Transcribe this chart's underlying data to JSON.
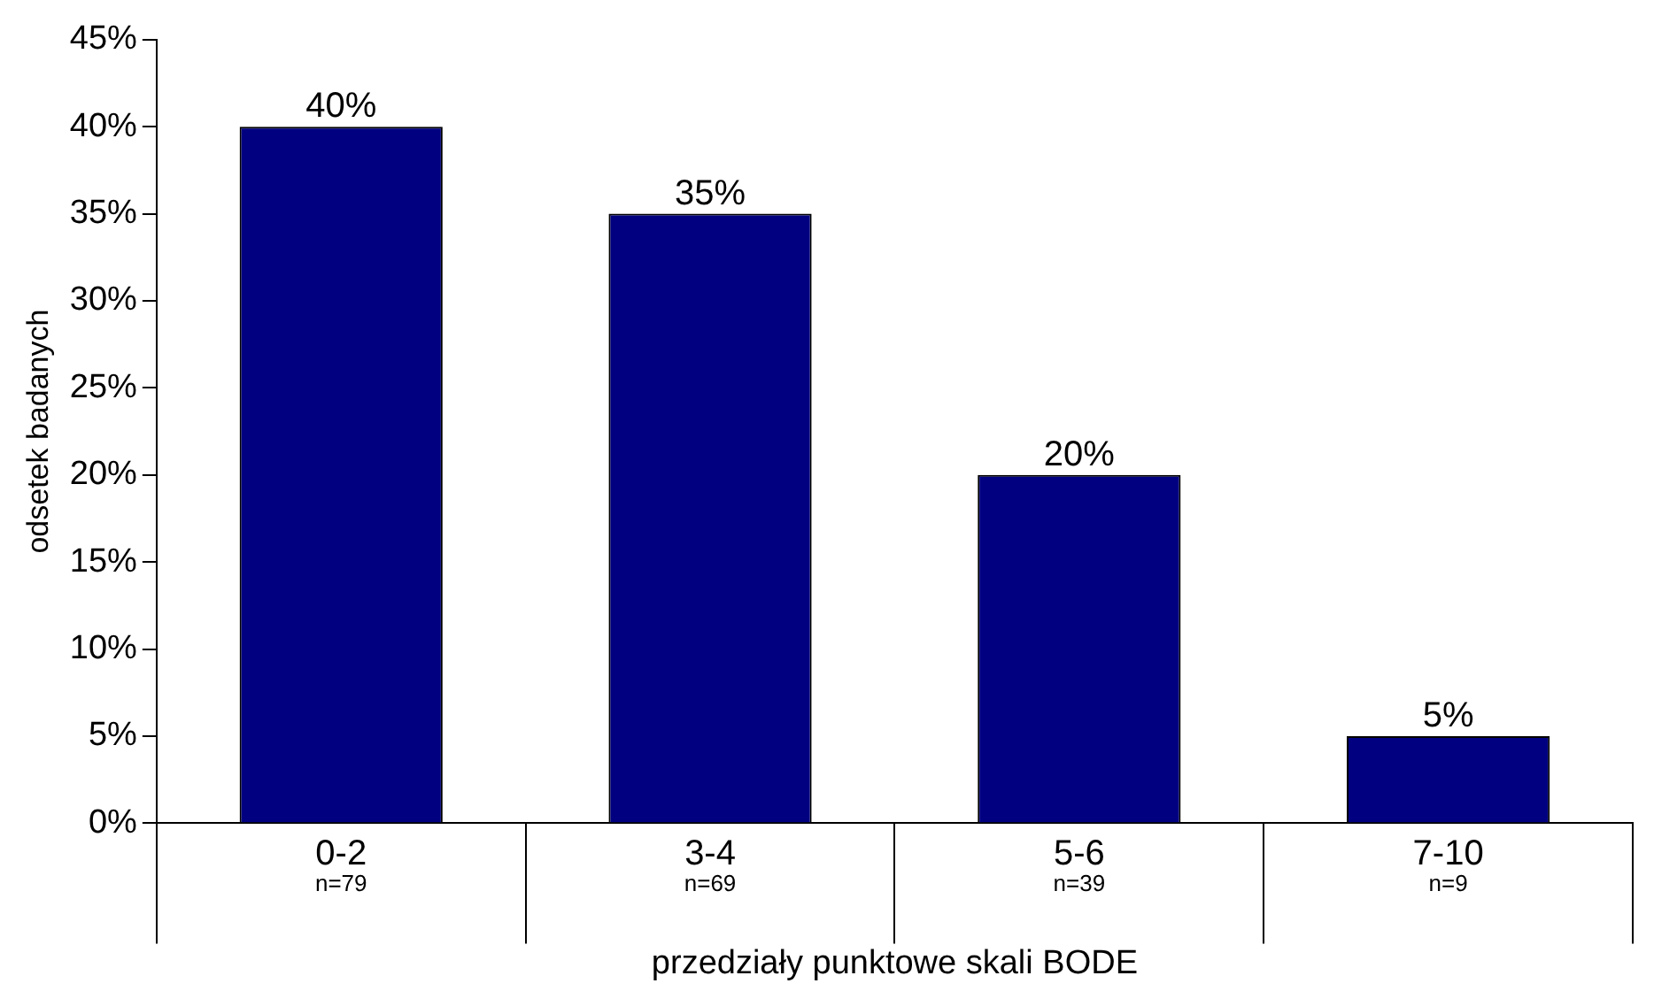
{
  "chart_data": {
    "type": "bar",
    "xlabel": "przedziały punktowe skali BODE",
    "ylabel": "odsetek badanych",
    "categories": [
      "0-2\nn=79",
      "3-4\nn=69",
      "5-6\nn=39",
      "7-10\nn=9"
    ],
    "values": [
      40,
      35,
      20,
      5
    ],
    "color": "#000080",
    "ylim": [
      0,
      45
    ],
    "yticks": [
      {
        "value": 0,
        "label": "0%"
      },
      {
        "value": 5,
        "label": "5%"
      },
      {
        "value": 10,
        "label": "10%"
      },
      {
        "value": 15,
        "label": "15%"
      },
      {
        "value": 20,
        "label": "20%"
      },
      {
        "value": 25,
        "label": "25%"
      },
      {
        "value": 30,
        "label": "30%"
      },
      {
        "value": 35,
        "label": "35%"
      },
      {
        "value": 40,
        "label": "40%"
      },
      {
        "value": 45,
        "label": "45%"
      }
    ],
    "value_labels": [
      "40%",
      "35%",
      "20%",
      "5%"
    ],
    "grid": false,
    "legend": false
  }
}
